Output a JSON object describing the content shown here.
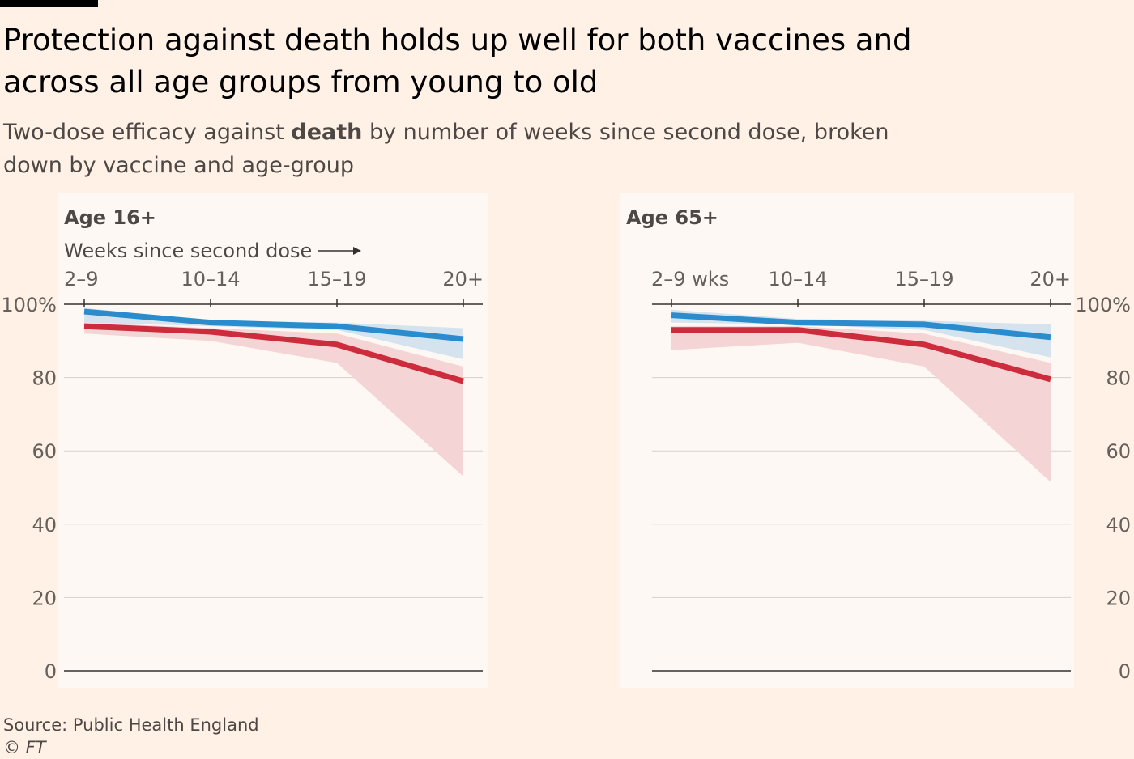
{
  "title": "Protection against death holds up well for both vaccines and across all age groups from young to old",
  "subtitle": {
    "pre": "Two-dose efficacy against ",
    "bold": "death",
    "post": " by number of weeks since second dose, broken down by vaccine and age-group"
  },
  "source": "Source: Public Health England",
  "credit": "© FT",
  "colors": {
    "background": "#fff1e5",
    "panel": "#fdf8f4",
    "blue_line": "#2a8ccd",
    "blue_band": "#c7dced",
    "red_line": "#cc2c3c",
    "red_band": "#f4d4d5",
    "overlap_band": "#d7c9cf"
  },
  "chart_data": [
    {
      "type": "line",
      "title": "Age 16+",
      "xlabel": "Weeks since second dose",
      "categories": [
        "2–9",
        "10–14",
        "15–19",
        "20+"
      ],
      "ylim": [
        0,
        100
      ],
      "yticks": [
        "100%",
        "80",
        "60",
        "40",
        "20",
        "0"
      ],
      "yaxis_side": "left",
      "series": [
        {
          "name": "blue",
          "values": [
            98,
            95,
            94,
            90.5
          ],
          "lower": [
            95,
            94,
            93,
            85
          ],
          "upper": [
            99,
            95.5,
            95,
            93.5
          ]
        },
        {
          "name": "red",
          "values": [
            94,
            92.5,
            89,
            79
          ],
          "lower": [
            92,
            90,
            84,
            53
          ],
          "upper": [
            95,
            93.5,
            92,
            83
          ]
        }
      ]
    },
    {
      "type": "line",
      "title": "Age 65+",
      "xlabel": "",
      "categories": [
        "2–9 wks",
        "10–14",
        "15–19",
        "20+"
      ],
      "ylim": [
        0,
        100
      ],
      "yticks": [
        "100%",
        "80",
        "60",
        "40",
        "20",
        "0"
      ],
      "yaxis_side": "right",
      "series": [
        {
          "name": "blue",
          "values": [
            97,
            95,
            94.5,
            91
          ],
          "lower": [
            95,
            94.5,
            93,
            85.5
          ],
          "upper": [
            98.5,
            96,
            95.5,
            94.5
          ]
        },
        {
          "name": "red",
          "values": [
            93,
            93,
            89,
            79.5
          ],
          "lower": [
            87.5,
            89.5,
            83,
            51.5
          ],
          "upper": [
            94,
            94,
            92,
            84
          ]
        }
      ]
    }
  ]
}
